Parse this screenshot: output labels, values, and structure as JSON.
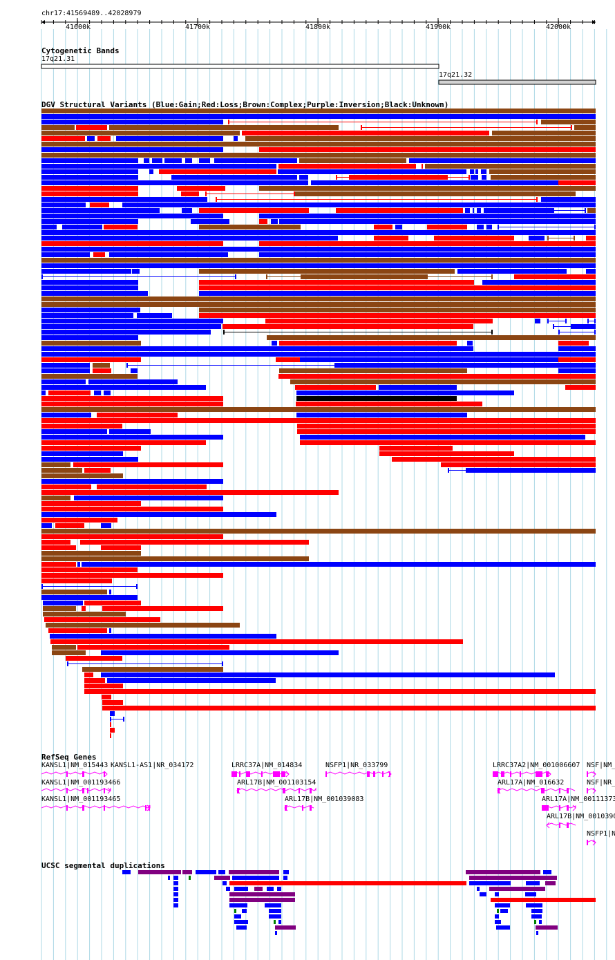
{
  "header": {
    "region": "chr17:41569489..42028979",
    "ticks": [
      "41600k",
      "41700k",
      "41800k",
      "41900k",
      "42000k"
    ]
  },
  "tracks": {
    "cytoband": {
      "title": "Cytogenetic Bands",
      "bands": [
        "17q21.31",
        "17q21.32"
      ]
    },
    "dgv": {
      "title": "DGV Structural Variants (Blue:Gain;Red:Loss;Brown:Complex;Purple:Inversion;Black:Unknown)"
    },
    "refseq": {
      "title": "RefSeq Genes",
      "genes": [
        "KANSL1|NM_015443",
        "KANSL1-AS1|NR_034172",
        "LRRC37A|NM_014834",
        "NSFP1|NR_033799",
        "LRRC37A2|NM_001006607",
        "NSF|NM_",
        "KANSL1|NM_001193466",
        "ARL17B|NM_001103154",
        "ARL17A|NM_016632",
        "NSF|NR_",
        "KANSL1|NM_001193465",
        "ARL17B|NM_001039083",
        "ARL17A|NM_00111373",
        "ARL17B|NM_00103908",
        "NSFP1|N"
      ]
    },
    "segdup": {
      "title": "UCSC segmental duplications"
    }
  },
  "colors": {
    "gain": "#0000ff",
    "loss": "#ff0000",
    "complex": "#8b4513",
    "inversion": "#800080",
    "unknown": "#000000",
    "gene": "#ff00ff",
    "grid": "#add8e6",
    "segdup_green": "#008000"
  }
}
